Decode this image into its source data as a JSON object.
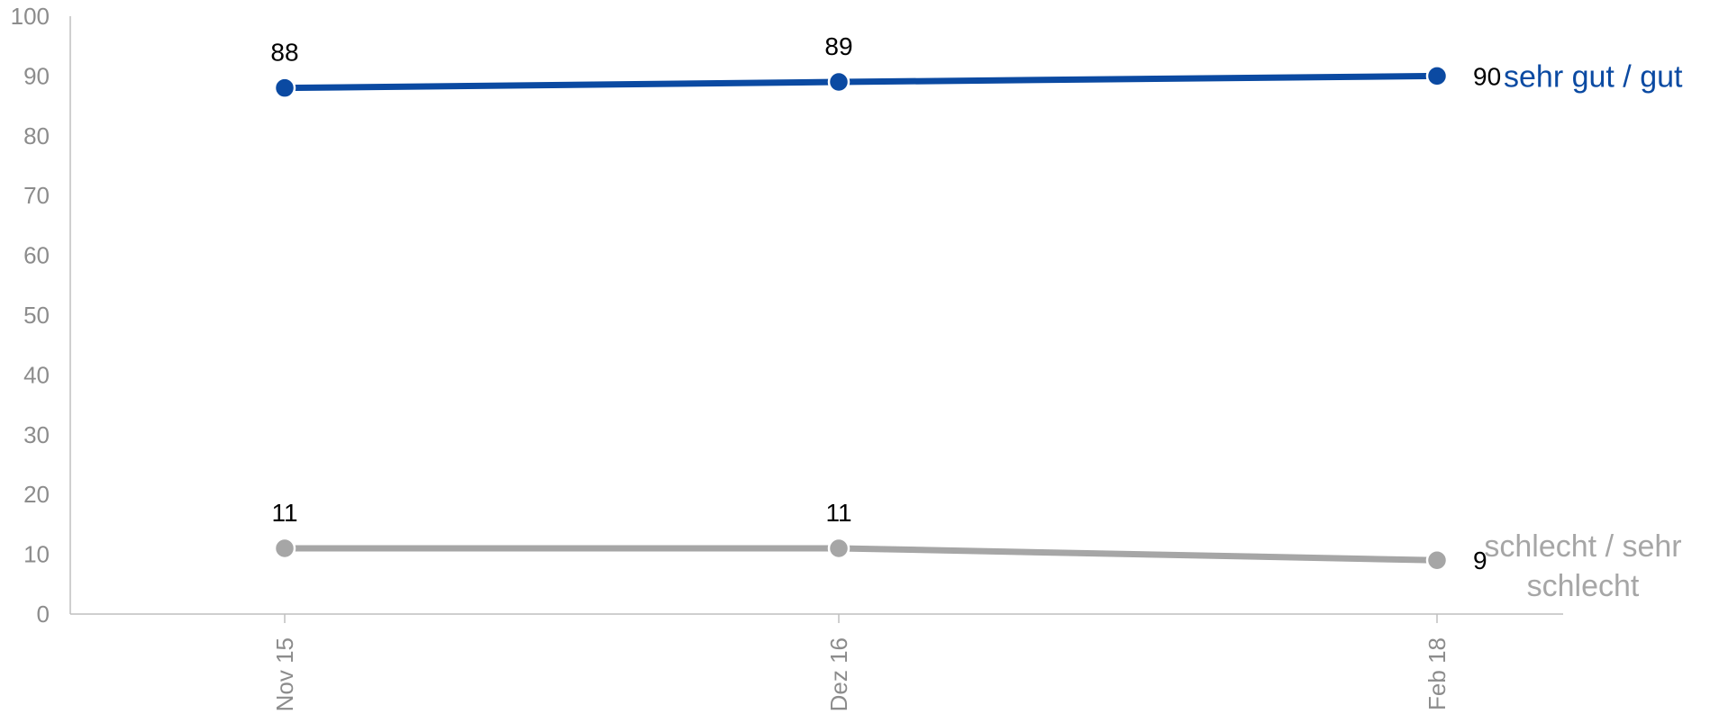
{
  "chart_data": {
    "type": "line",
    "title": "",
    "xlabel": "",
    "ylabel": "",
    "categories": [
      "Nov 15",
      "Dez 16",
      "Feb 18"
    ],
    "ylim": [
      0,
      100
    ],
    "yticks": [
      0,
      10,
      20,
      30,
      40,
      50,
      60,
      70,
      80,
      90,
      100
    ],
    "grid": false,
    "series": [
      {
        "name": "sehr gut / gut",
        "label_lines": [
          "sehr gut / gut"
        ],
        "values": [
          88,
          89,
          90
        ],
        "data_labels": [
          "88",
          "89",
          "90"
        ],
        "color": "#0b4aa2"
      },
      {
        "name": "schlecht / sehr schlecht",
        "label_lines": [
          "schlecht / sehr",
          "schlecht"
        ],
        "values": [
          11,
          11,
          9
        ],
        "data_labels": [
          "11",
          "11",
          "9"
        ],
        "color": "#a6a6a6"
      }
    ]
  }
}
